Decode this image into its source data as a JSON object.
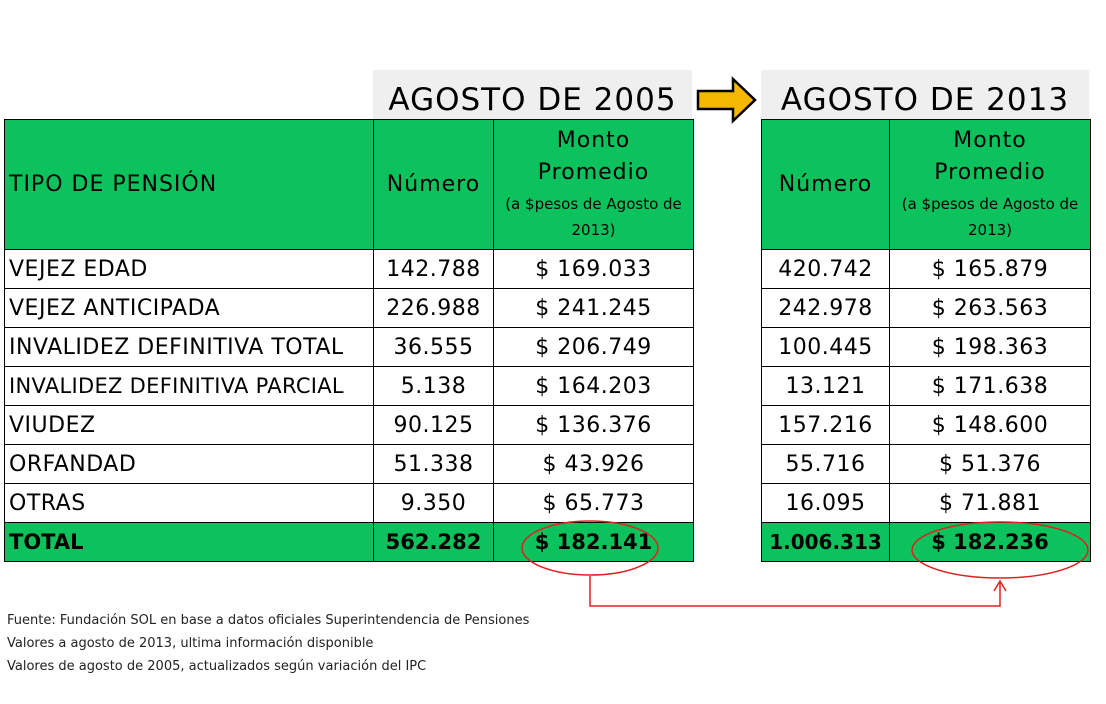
{
  "period_left": "AGOSTO DE 2005",
  "period_right": "AGOSTO DE 2013",
  "headers": {
    "tipo": "TIPO DE PENSIÓN",
    "numero": "Número",
    "monto_line1": "Monto",
    "monto_line2": "Promedio",
    "monto_note": "(a $pesos de Agosto de 2013)"
  },
  "rows": [
    {
      "tipo": "VEJEZ EDAD",
      "n2005": "142.788",
      "m2005": "$ 169.033",
      "n2013": "420.742",
      "m2013": "$ 165.879"
    },
    {
      "tipo": "VEJEZ ANTICIPADA",
      "n2005": "226.988",
      "m2005": "$ 241.245",
      "n2013": "242.978",
      "m2013": "$ 263.563"
    },
    {
      "tipo": "INVALIDEZ DEFINITIVA TOTAL",
      "n2005": "36.555",
      "m2005": "$ 206.749",
      "n2013": "100.445",
      "m2013": "$ 198.363"
    },
    {
      "tipo": "INVALIDEZ DEFINITIVA PARCIAL",
      "n2005": "5.138",
      "m2005": "$ 164.203",
      "n2013": "13.121",
      "m2013": "$ 171.638"
    },
    {
      "tipo": "VIUDEZ",
      "n2005": "90.125",
      "m2005": "$ 136.376",
      "n2013": "157.216",
      "m2013": "$ 148.600"
    },
    {
      "tipo": "ORFANDAD",
      "n2005": "51.338",
      "m2005": "$ 43.926",
      "n2013": "55.716",
      "m2013": "$ 51.376"
    },
    {
      "tipo": "OTRAS",
      "n2005": "9.350",
      "m2005": "$ 65.773",
      "n2013": "16.095",
      "m2013": "$ 71.881"
    }
  ],
  "total": {
    "tipo": "TOTAL",
    "n2005": "562.282",
    "m2005": "$ 182.141",
    "n2013": "1.006.313",
    "m2013": "$ 182.236"
  },
  "notes": [
    "Fuente: Fundación SOL en base a datos oficiales Superintendencia de Pensiones",
    "Valores a agosto de 2013, ultima información disponible",
    "Valores de agosto de 2005, actualizados según variación del IPC"
  ],
  "colors": {
    "header_green": "#0cc25c",
    "arrow": "#f5b800",
    "highlight_red": "#e02020"
  }
}
